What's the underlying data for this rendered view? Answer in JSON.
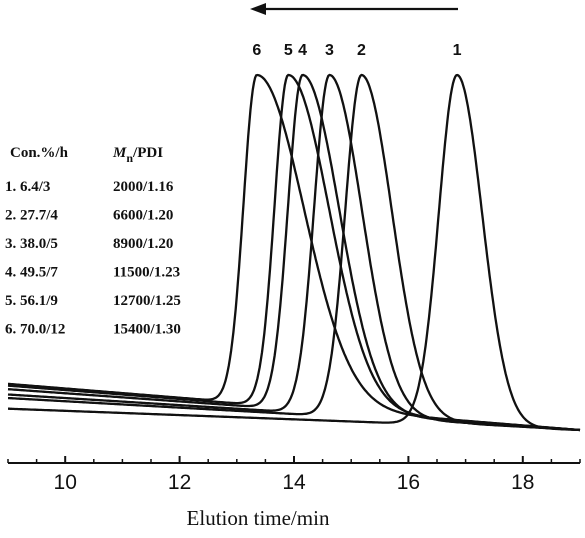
{
  "chart_data": {
    "type": "line",
    "title": "",
    "xlabel": "Elution time/min",
    "ylabel": "",
    "xlim": [
      9,
      19
    ],
    "x_ticks": [
      "10",
      "12",
      "14",
      "16",
      "18"
    ],
    "x_tick_values": [
      10,
      12,
      14,
      16,
      18
    ],
    "grid": false,
    "arrow_direction": "left",
    "legend": {
      "header_left": "Con.%/h",
      "header_right_italic": "M",
      "header_right_sub": "n",
      "header_right_rest": "/PDI",
      "rows": [
        {
          "left": "1. 6.4/3",
          "right": "2000/1.16"
        },
        {
          "left": "2. 27.7/4",
          "right": "6600/1.20"
        },
        {
          "left": "3. 38.0/5",
          "right": "8900/1.20"
        },
        {
          "left": "4. 49.5/7",
          "right": "11500/1.23"
        },
        {
          "left": "5. 56.1/9",
          "right": "12700/1.25"
        },
        {
          "left": "6. 70.0/12",
          "right": "15400/1.30"
        }
      ]
    },
    "series": [
      {
        "name": "1",
        "peak_x": 16.85,
        "baseline_left": 0.06,
        "baseline_right": 0.0,
        "width_left": 0.45,
        "width_right": 0.62
      },
      {
        "name": "2",
        "peak_x": 15.18,
        "baseline_left": 0.09,
        "baseline_right": 0.0,
        "width_left": 0.4,
        "width_right": 0.75
      },
      {
        "name": "3",
        "peak_x": 14.62,
        "baseline_left": 0.1,
        "baseline_right": 0.0,
        "width_left": 0.38,
        "width_right": 0.8
      },
      {
        "name": "4",
        "peak_x": 14.15,
        "baseline_left": 0.115,
        "baseline_right": 0.0,
        "width_left": 0.36,
        "width_right": 0.9
      },
      {
        "name": "5",
        "peak_x": 13.9,
        "baseline_left": 0.125,
        "baseline_right": 0.0,
        "width_left": 0.34,
        "width_right": 1.0
      },
      {
        "name": "6",
        "peak_x": 13.35,
        "baseline_left": 0.13,
        "baseline_right": 0.0,
        "width_left": 0.33,
        "width_right": 1.15
      }
    ]
  }
}
